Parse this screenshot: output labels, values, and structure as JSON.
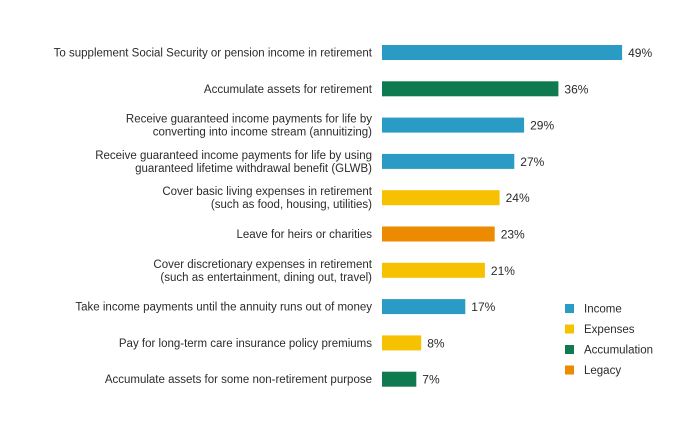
{
  "chart_data": {
    "type": "bar",
    "orientation": "horizontal",
    "title": "",
    "xlabel": "",
    "ylabel": "",
    "xlim": [
      0,
      50
    ],
    "grid": false,
    "legend_position": "bottom-right",
    "categories": [
      [
        "To supplement Social Security or pension income in retirement"
      ],
      [
        "Accumulate assets for retirement"
      ],
      [
        "Receive guaranteed income payments for life by",
        "converting into income stream (annuitizing)"
      ],
      [
        "Receive guaranteed income payments for life by using",
        "guaranteed lifetime withdrawal benefit (GLWB)"
      ],
      [
        "Cover basic living expenses in retirement",
        "(such as food, housing, utilities)"
      ],
      [
        "Leave for heirs or charities"
      ],
      [
        "Cover discretionary expenses in retirement",
        "(such as entertainment, dining out, travel)"
      ],
      [
        "Take income payments until the annuity runs out of money"
      ],
      [
        "Pay for long-term care insurance policy premiums"
      ],
      [
        "Accumulate assets for some non-retirement purpose"
      ]
    ],
    "values": [
      49,
      36,
      29,
      27,
      24,
      23,
      21,
      17,
      8,
      7
    ],
    "value_labels": [
      "49%",
      "36%",
      "29%",
      "27%",
      "24%",
      "23%",
      "21%",
      "17%",
      "8%",
      "7%"
    ],
    "groups": [
      "Income",
      "Accumulation",
      "Income",
      "Income",
      "Expenses",
      "Legacy",
      "Expenses",
      "Income",
      "Expenses",
      "Accumulation"
    ],
    "legend": [
      {
        "name": "Income",
        "color": "#2a9bc4"
      },
      {
        "name": "Expenses",
        "color": "#f5c100"
      },
      {
        "name": "Accumulation",
        "color": "#0f7a4f"
      },
      {
        "name": "Legacy",
        "color": "#ec8a00"
      }
    ]
  }
}
